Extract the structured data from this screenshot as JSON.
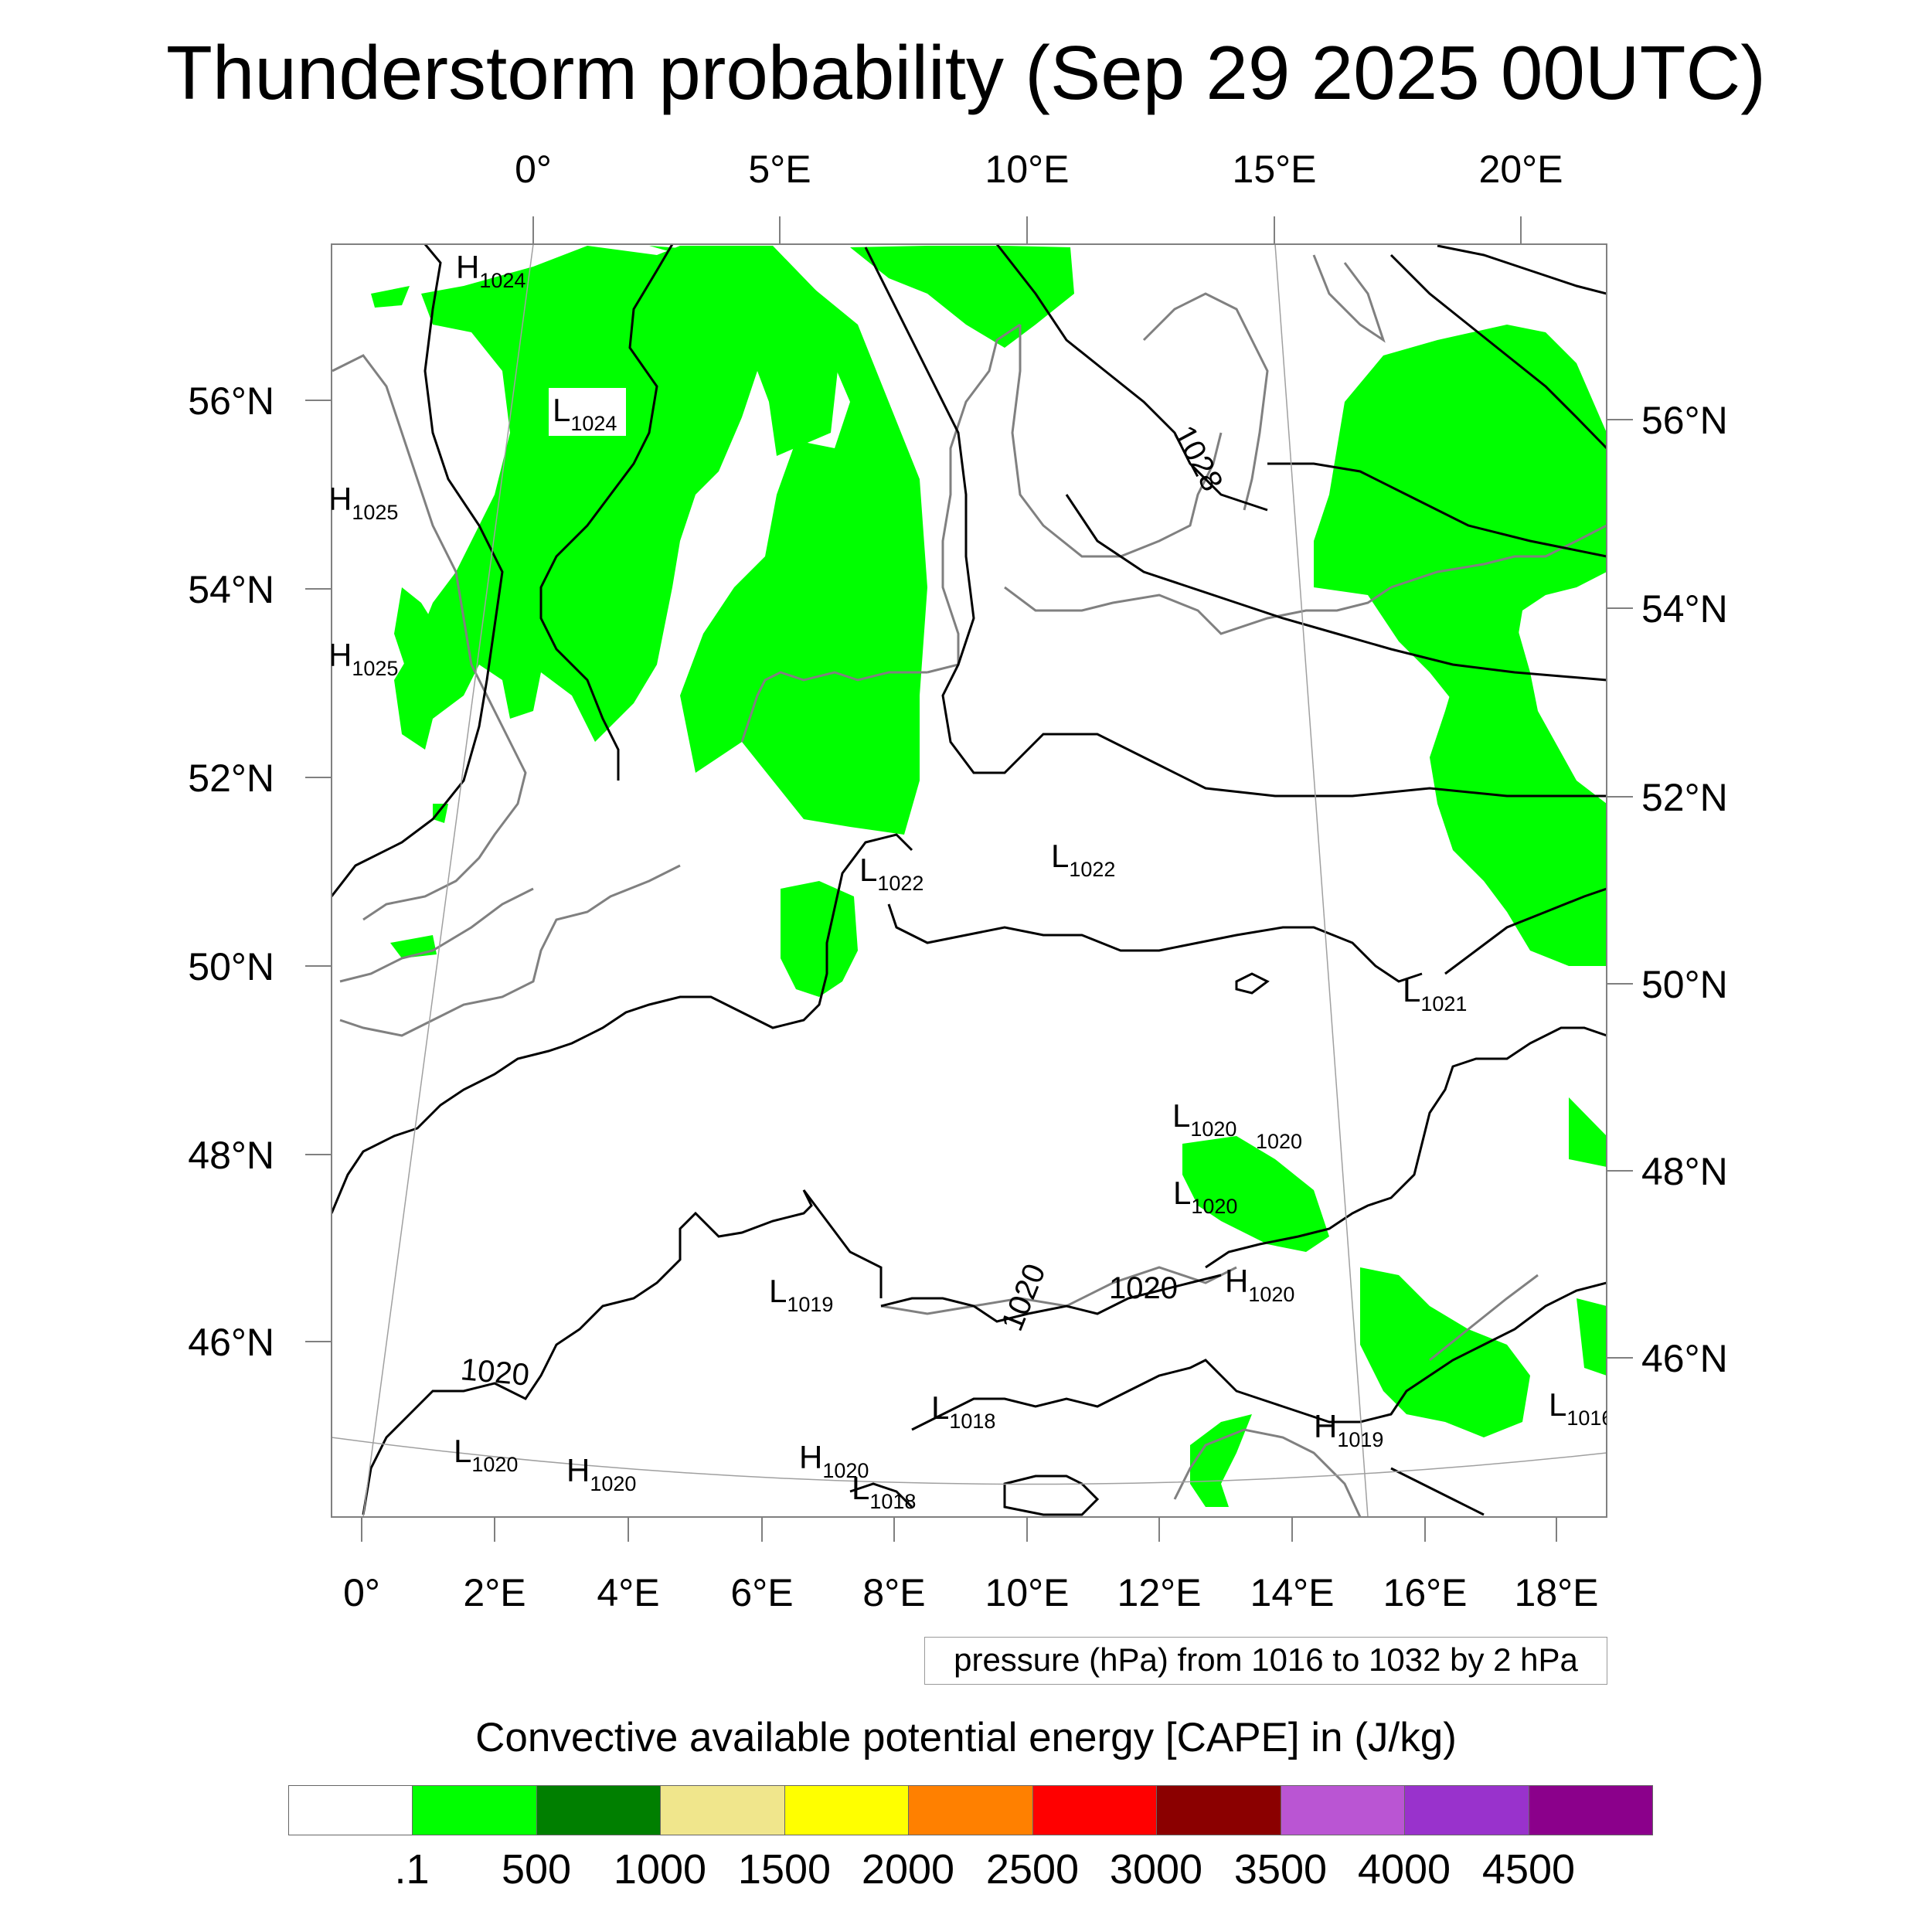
{
  "title": "Thunderstorm probability (Sep 29 2025 00UTC)",
  "axes": {
    "top_lon": [
      "0°",
      "5°E",
      "10°E",
      "15°E",
      "20°E"
    ],
    "bottom_lon": [
      "0°",
      "2°E",
      "4°E",
      "6°E",
      "8°E",
      "10°E",
      "12°E",
      "14°E",
      "16°E",
      "18°E"
    ],
    "left_lat": [
      "56°N",
      "54°N",
      "52°N",
      "50°N",
      "48°N",
      "46°N"
    ],
    "right_lat": [
      "56°N",
      "54°N",
      "52°N",
      "50°N",
      "48°N",
      "46°N"
    ]
  },
  "pressure_centers": [
    {
      "type": "H",
      "value": "1024"
    },
    {
      "type": "L",
      "value": "1024"
    },
    {
      "type": "H",
      "value": "1025"
    },
    {
      "type": "H",
      "value": "1025"
    },
    {
      "type": "L",
      "value": "1022"
    },
    {
      "type": "L",
      "value": "1022"
    },
    {
      "type": "L",
      "value": "1021"
    },
    {
      "type": "L",
      "value": "1020"
    },
    {
      "type": "L",
      "value": "1020"
    },
    {
      "type": "H",
      "value": "1020"
    },
    {
      "type": "L",
      "value": "1019"
    },
    {
      "type": "L",
      "value": "1018"
    },
    {
      "type": "H",
      "value": "1020"
    },
    {
      "type": "L",
      "value": "1018"
    },
    {
      "type": "L",
      "value": "1020"
    },
    {
      "type": "H",
      "value": "1020"
    },
    {
      "type": "H",
      "value": "1019"
    },
    {
      "type": "L",
      "value": "1016"
    }
  ],
  "contour_labels": [
    "1028",
    "1020",
    "1020",
    "1020",
    "1020"
  ],
  "pressure_note": "pressure (hPa) from 1016 to 1032 by 2 hPa",
  "legend": {
    "title": "Convective available potential energy [CAPE] in (J/kg)",
    "colors": [
      "#ffffff",
      "#00ff00",
      "#007f00",
      "#f0e68c",
      "#ffff00",
      "#ff8000",
      "#ff0000",
      "#8b0000",
      "#ba55d3",
      "#9932cc",
      "#8b008b"
    ],
    "ticks": [
      ".1",
      "500",
      "1000",
      "1500",
      "2000",
      "2500",
      "3000",
      "3500",
      "4000",
      "4500"
    ]
  },
  "colors": {
    "cape_low": "#00ff00",
    "coast": "#808080",
    "isobar": "#000000",
    "graticule": "#a0a0a0"
  }
}
